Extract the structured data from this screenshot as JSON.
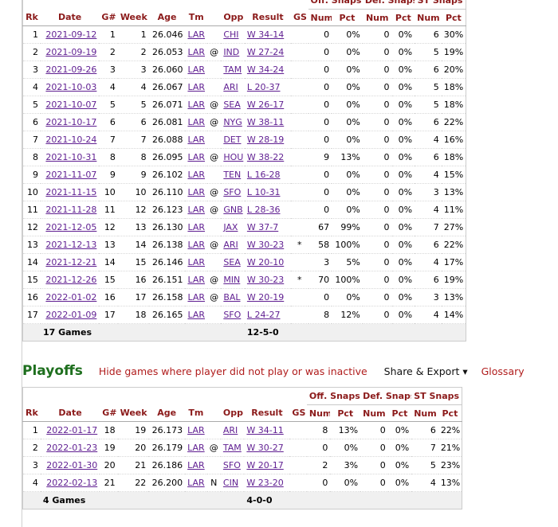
{
  "colgroup_headers": [
    "Off. Snaps",
    "Def. Snaps",
    "ST Snaps"
  ],
  "columns": [
    "Rk",
    "Date",
    "G#",
    "Week",
    "Age",
    "Tm",
    "",
    "Opp",
    "Result",
    "GS",
    "Num",
    "Pct",
    "Num",
    "Pct",
    "Num",
    "Pct"
  ],
  "regular": {
    "rows": [
      [
        "1",
        "2021-09-12",
        "1",
        "1",
        "26.046",
        "LAR",
        "",
        "CHI",
        "W 34-14",
        "",
        "0",
        "0%",
        "0",
        "0%",
        "6",
        "30%"
      ],
      [
        "2",
        "2021-09-19",
        "2",
        "2",
        "26.053",
        "LAR",
        "@",
        "IND",
        "W 27-24",
        "",
        "0",
        "0%",
        "0",
        "0%",
        "5",
        "19%"
      ],
      [
        "3",
        "2021-09-26",
        "3",
        "3",
        "26.060",
        "LAR",
        "",
        "TAM",
        "W 34-24",
        "",
        "0",
        "0%",
        "0",
        "0%",
        "6",
        "20%"
      ],
      [
        "4",
        "2021-10-03",
        "4",
        "4",
        "26.067",
        "LAR",
        "",
        "ARI",
        "L 20-37",
        "",
        "0",
        "0%",
        "0",
        "0%",
        "5",
        "18%"
      ],
      [
        "5",
        "2021-10-07",
        "5",
        "5",
        "26.071",
        "LAR",
        "@",
        "SEA",
        "W 26-17",
        "",
        "0",
        "0%",
        "0",
        "0%",
        "5",
        "18%"
      ],
      [
        "6",
        "2021-10-17",
        "6",
        "6",
        "26.081",
        "LAR",
        "@",
        "NYG",
        "W 38-11",
        "",
        "0",
        "0%",
        "0",
        "0%",
        "6",
        "22%"
      ],
      [
        "7",
        "2021-10-24",
        "7",
        "7",
        "26.088",
        "LAR",
        "",
        "DET",
        "W 28-19",
        "",
        "0",
        "0%",
        "0",
        "0%",
        "4",
        "16%"
      ],
      [
        "8",
        "2021-10-31",
        "8",
        "8",
        "26.095",
        "LAR",
        "@",
        "HOU",
        "W 38-22",
        "",
        "9",
        "13%",
        "0",
        "0%",
        "6",
        "18%"
      ],
      [
        "9",
        "2021-11-07",
        "9",
        "9",
        "26.102",
        "LAR",
        "",
        "TEN",
        "L 16-28",
        "",
        "0",
        "0%",
        "0",
        "0%",
        "4",
        "15%"
      ],
      [
        "10",
        "2021-11-15",
        "10",
        "10",
        "26.110",
        "LAR",
        "@",
        "SFO",
        "L 10-31",
        "",
        "0",
        "0%",
        "0",
        "0%",
        "3",
        "13%"
      ],
      [
        "11",
        "2021-11-28",
        "11",
        "12",
        "26.123",
        "LAR",
        "@",
        "GNB",
        "L 28-36",
        "",
        "0",
        "0%",
        "0",
        "0%",
        "4",
        "11%"
      ],
      [
        "12",
        "2021-12-05",
        "12",
        "13",
        "26.130",
        "LAR",
        "",
        "JAX",
        "W 37-7",
        "",
        "67",
        "99%",
        "0",
        "0%",
        "7",
        "27%"
      ],
      [
        "13",
        "2021-12-13",
        "13",
        "14",
        "26.138",
        "LAR",
        "@",
        "ARI",
        "W 30-23",
        "*",
        "58",
        "100%",
        "0",
        "0%",
        "6",
        "22%"
      ],
      [
        "14",
        "2021-12-21",
        "14",
        "15",
        "26.146",
        "LAR",
        "",
        "SEA",
        "W 20-10",
        "",
        "3",
        "5%",
        "0",
        "0%",
        "4",
        "17%"
      ],
      [
        "15",
        "2021-12-26",
        "15",
        "16",
        "26.151",
        "LAR",
        "@",
        "MIN",
        "W 30-23",
        "*",
        "70",
        "100%",
        "0",
        "0%",
        "6",
        "19%"
      ],
      [
        "16",
        "2022-01-02",
        "16",
        "17",
        "26.158",
        "LAR",
        "@",
        "BAL",
        "W 20-19",
        "",
        "0",
        "0%",
        "0",
        "0%",
        "3",
        "13%"
      ],
      [
        "17",
        "2022-01-09",
        "17",
        "18",
        "26.165",
        "LAR",
        "",
        "SFO",
        "L 24-27",
        "",
        "8",
        "12%",
        "0",
        "0%",
        "4",
        "14%"
      ]
    ],
    "total_label": "17 Games",
    "total_result": "12-5-0"
  },
  "playoffs_header": {
    "title": "Playoffs",
    "hide_link": "Hide games where player did not play or was inactive",
    "share_label": "Share & Export ▾",
    "glossary_label": "Glossary"
  },
  "playoffs": {
    "rows": [
      [
        "1",
        "2022-01-17",
        "18",
        "19",
        "26.173",
        "LAR",
        "",
        "ARI",
        "W 34-11",
        "",
        "8",
        "13%",
        "0",
        "0%",
        "6",
        "22%"
      ],
      [
        "2",
        "2022-01-23",
        "19",
        "20",
        "26.179",
        "LAR",
        "@",
        "TAM",
        "W 30-27",
        "",
        "0",
        "0%",
        "0",
        "0%",
        "7",
        "21%"
      ],
      [
        "3",
        "2022-01-30",
        "20",
        "21",
        "26.186",
        "LAR",
        "",
        "SFO",
        "W 20-17",
        "",
        "2",
        "3%",
        "0",
        "0%",
        "5",
        "23%"
      ],
      [
        "4",
        "2022-02-13",
        "21",
        "22",
        "26.200",
        "LAR",
        "N",
        "CIN",
        "W 23-20",
        "",
        "0",
        "0%",
        "0",
        "0%",
        "4",
        "13%"
      ]
    ],
    "total_label": "4 Games",
    "total_result": "4-0-0"
  }
}
